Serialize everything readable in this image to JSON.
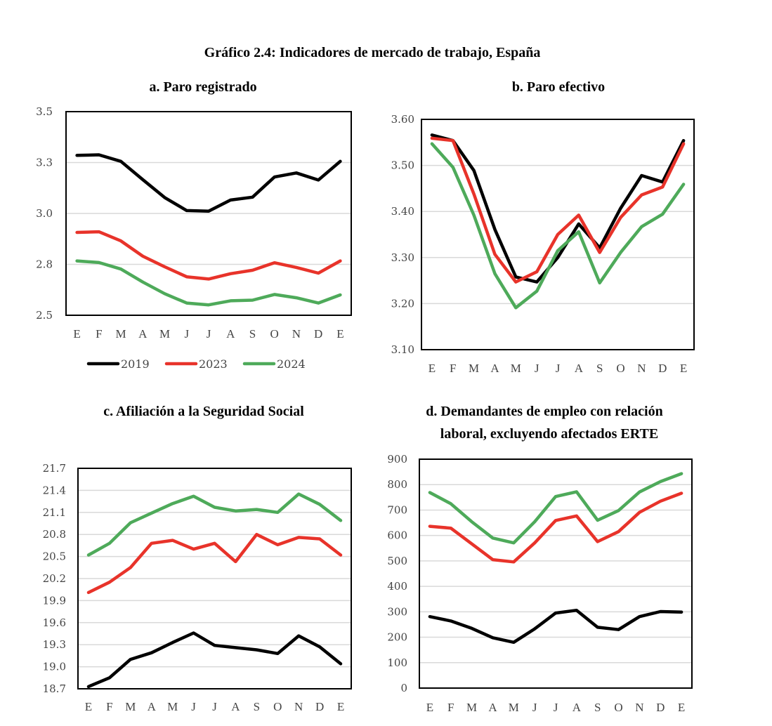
{
  "title": "Gráfico 2.4: Indicadores de mercado de trabajo, España",
  "colors": {
    "2019": "#000000",
    "2023": "#e8332a",
    "2024": "#4eaa5a",
    "grid": "#d9d9d9"
  },
  "legend": [
    {
      "name": "2019",
      "color": "#000000"
    },
    {
      "name": "2023",
      "color": "#e8332a"
    },
    {
      "name": "2024",
      "color": "#4eaa5a"
    }
  ],
  "chart_data": [
    {
      "type": "line",
      "title": "a. Paro registrado",
      "categories": [
        "E",
        "F",
        "M",
        "A",
        "M",
        "J",
        "J",
        "A",
        "S",
        "O",
        "N",
        "D",
        "E"
      ],
      "ylim": [
        2.5,
        3.5
      ],
      "yticks": [
        2.5,
        2.75,
        3.0,
        3.25,
        3.5
      ],
      "ytick_labels": [
        "2.5",
        "2.8",
        "3.0",
        "3.3",
        "3.5"
      ],
      "grid": true,
      "legend": "bottom",
      "series": [
        {
          "name": "2019",
          "values": [
            3.285,
            3.288,
            3.256,
            3.166,
            3.078,
            3.014,
            3.011,
            3.066,
            3.08,
            3.179,
            3.199,
            3.164,
            3.256
          ]
        },
        {
          "name": "2023",
          "values": [
            2.907,
            2.91,
            2.865,
            2.79,
            2.738,
            2.689,
            2.678,
            2.704,
            2.721,
            2.758,
            2.735,
            2.707,
            2.767
          ]
        },
        {
          "name": "2024",
          "values": [
            2.767,
            2.759,
            2.727,
            2.663,
            2.606,
            2.56,
            2.551,
            2.571,
            2.574,
            2.602,
            2.586,
            2.56,
            2.6
          ]
        }
      ]
    },
    {
      "type": "line",
      "title": "b. Paro efectivo",
      "categories": [
        "E",
        "F",
        "M",
        "A",
        "M",
        "J",
        "J",
        "A",
        "S",
        "O",
        "N",
        "D",
        "E"
      ],
      "ylim": [
        3.1,
        3.6
      ],
      "yticks": [
        3.1,
        3.2,
        3.3,
        3.4,
        3.5,
        3.6
      ],
      "ytick_labels": [
        "3.10",
        "3.20",
        "3.30",
        "3.40",
        "3.50",
        "3.60"
      ],
      "grid": true,
      "series": [
        {
          "name": "2019",
          "values": [
            3.566,
            3.554,
            3.489,
            3.361,
            3.258,
            3.247,
            3.3,
            3.373,
            3.321,
            3.407,
            3.478,
            3.464,
            3.554
          ]
        },
        {
          "name": "2023",
          "values": [
            3.559,
            3.554,
            3.438,
            3.307,
            3.247,
            3.269,
            3.35,
            3.392,
            3.311,
            3.387,
            3.436,
            3.453,
            3.547
          ]
        },
        {
          "name": "2024",
          "values": [
            3.547,
            3.496,
            3.392,
            3.265,
            3.191,
            3.227,
            3.315,
            3.356,
            3.245,
            3.311,
            3.367,
            3.394,
            3.459
          ]
        }
      ]
    },
    {
      "type": "line",
      "title": "c. Afiliación a la Seguridad Social",
      "categories": [
        "E",
        "F",
        "M",
        "A",
        "M",
        "J",
        "J",
        "A",
        "S",
        "O",
        "N",
        "D",
        "E"
      ],
      "ylim": [
        18.7,
        21.7
      ],
      "yticks": [
        18.7,
        19.0,
        19.3,
        19.6,
        19.9,
        20.2,
        20.5,
        20.8,
        21.1,
        21.4,
        21.7
      ],
      "ytick_labels": [
        "18.7",
        "19.0",
        "19.3",
        "19.6",
        "19.9",
        "20.2",
        "20.5",
        "20.8",
        "21.1",
        "21.4",
        "21.7"
      ],
      "grid": true,
      "series": [
        {
          "name": "2019",
          "values": [
            18.73,
            18.85,
            19.1,
            19.19,
            19.33,
            19.46,
            19.29,
            19.26,
            19.23,
            19.18,
            19.42,
            19.27,
            19.04
          ]
        },
        {
          "name": "2023",
          "values": [
            20.01,
            20.15,
            20.35,
            20.68,
            20.72,
            20.6,
            20.68,
            20.43,
            20.8,
            20.66,
            20.76,
            20.74,
            20.52
          ]
        },
        {
          "name": "2024",
          "values": [
            20.52,
            20.68,
            20.96,
            21.09,
            21.22,
            21.32,
            21.17,
            21.12,
            21.14,
            21.1,
            21.35,
            21.21,
            20.99
          ]
        }
      ]
    },
    {
      "type": "line",
      "title": [
        "d. Demandantes de empleo con relación",
        "laboral, excluyendo afectados ERTE"
      ],
      "categories": [
        "E",
        "F",
        "M",
        "A",
        "M",
        "J",
        "J",
        "A",
        "S",
        "O",
        "N",
        "D",
        "E"
      ],
      "ylim": [
        0,
        900
      ],
      "yticks": [
        0,
        100,
        200,
        300,
        400,
        500,
        600,
        700,
        800,
        900
      ],
      "ytick_labels": [
        "0",
        "100",
        "200",
        "300",
        "400",
        "500",
        "600",
        "700",
        "800",
        "900"
      ],
      "grid": true,
      "series": [
        {
          "name": "2019",
          "values": [
            281,
            264,
            235,
            198,
            180,
            233,
            295,
            306,
            239,
            230,
            281,
            301,
            299
          ]
        },
        {
          "name": "2023",
          "values": [
            636,
            629,
            567,
            505,
            496,
            571,
            659,
            677,
            576,
            615,
            691,
            735,
            766
          ]
        },
        {
          "name": "2024",
          "values": [
            769,
            725,
            654,
            590,
            571,
            654,
            753,
            772,
            660,
            698,
            771,
            812,
            843
          ]
        }
      ]
    }
  ]
}
